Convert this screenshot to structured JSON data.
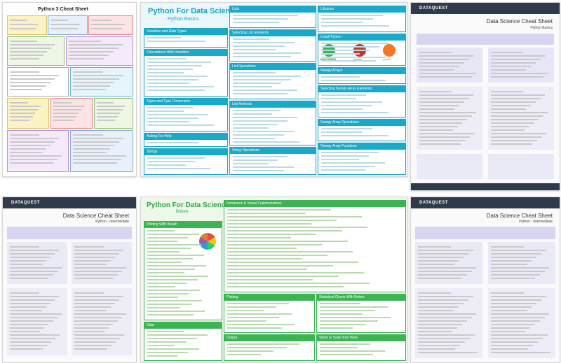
{
  "sheets": [
    {
      "title": "Python 3 Cheat Sheet"
    },
    {
      "title": "Python For Data Science Cheat Sheet",
      "subtitle": "Python Basics",
      "sections": [
        "Variables and Data Types",
        "Calculations With Variables",
        "Types and Type Conversion",
        "Asking For Help",
        "Strings",
        "String Operations",
        "Lists",
        "Selecting List Elements",
        "List Operations",
        "List Methods",
        "String Methods",
        "Libraries",
        "Install Python",
        "Numpy Arrays",
        "Selecting Numpy Array Elements",
        "Numpy Array Operations",
        "Numpy Array Functions"
      ],
      "logos": [
        "ANACONDA",
        "spyder",
        "jupyter"
      ]
    },
    {
      "brand": "DATAQUEST",
      "title": "Data Science Cheat Sheet",
      "subtitle": "Python Basics"
    },
    {
      "brand": "DATAQUEST",
      "title": "Data Science Cheat Sheet",
      "subtitle": "Python - Intermediate"
    },
    {
      "title": "Python For Data Science Cheat Sheet",
      "subtitle": "Bokeh",
      "sections": [
        "Plotting With Bokeh",
        "Renderers & Visual Customizations",
        "Data",
        "Plotting",
        "Output",
        "Statistical Charts With Bokeh",
        "Show or Save Your Plots"
      ]
    },
    {
      "brand": "DATAQUEST",
      "title": "Data Science Cheat Sheet",
      "subtitle": "Python - Intermediate"
    }
  ]
}
